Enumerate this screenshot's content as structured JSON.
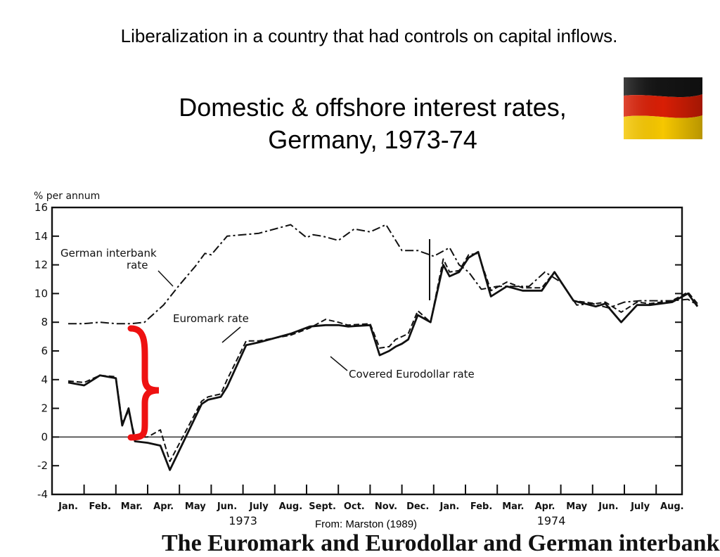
{
  "slide": {
    "subtitle": "Liberalization in a country that had controls on capital inflows.",
    "title_line1": "Domestic & offshore interest rates,",
    "title_line2": "Germany, 1973-74",
    "source": "From: Marston (1989)",
    "cut_text": "The Euromark and Eurodollar and German interbank",
    "flag_icon": "germany-flag-icon",
    "annotation_icon": "red-curly-brace-icon"
  },
  "chart_data": {
    "type": "line",
    "unit_label": "% per annum",
    "ylim": [
      -4,
      16
    ],
    "yticks": [
      -4,
      -2,
      0,
      2,
      4,
      6,
      8,
      10,
      12,
      14,
      16
    ],
    "xlim": [
      0,
      20.3
    ],
    "months": [
      "Jan.",
      "Feb.",
      "Mar.",
      "Apr.",
      "May",
      "Jun.",
      "July",
      "Aug.",
      "Sept.",
      "Oct.",
      "Nov.",
      "Dec.",
      "Jan.",
      "Feb.",
      "Mar.",
      "Apr.",
      "May",
      "Jun.",
      "July",
      "Aug."
    ],
    "years": [
      "1973",
      "1974"
    ],
    "grid": false,
    "annotations": [
      {
        "id": "german",
        "text_lines": [
          "German interbank",
          "rate"
        ]
      },
      {
        "id": "euromark",
        "text_lines": [
          "Euromark rate"
        ]
      },
      {
        "id": "covered",
        "text_lines": [
          "Covered Eurodollar rate"
        ]
      }
    ],
    "series": [
      {
        "name": "German interbank rate",
        "style": "dash-dot",
        "x": [
          0,
          0.5,
          1,
          1.5,
          2,
          2.4,
          3,
          3.5,
          4,
          4.3,
          4.5,
          5,
          5.5,
          6,
          6.5,
          7,
          7.5,
          7.7,
          8,
          8.5,
          9,
          9.5,
          10,
          10.5,
          11,
          11.5,
          12,
          12.3,
          12.6,
          13,
          13.5,
          14,
          14.5,
          15,
          15.5,
          16,
          16.5,
          17,
          17.5,
          18,
          18.5,
          19,
          19.5,
          19.8
        ],
        "y": [
          7.9,
          7.9,
          8.0,
          7.9,
          7.9,
          8.0,
          9.2,
          10.6,
          11.9,
          12.8,
          12.7,
          14.0,
          14.1,
          14.2,
          14.5,
          14.8,
          13.9,
          14.1,
          14.0,
          13.7,
          14.5,
          14.3,
          14.8,
          13.0,
          13.0,
          12.6,
          13.2,
          12.0,
          11.5,
          10.3,
          10.5,
          10.5,
          10.5,
          11.5,
          10.8,
          9.2,
          9.3,
          9.0,
          9.4,
          9.5,
          9.5,
          9.5,
          9.6,
          9.2
        ]
      },
      {
        "name": "Euromark rate",
        "style": "dashed",
        "x": [
          0,
          0.5,
          1,
          1.5,
          1.7,
          1.9,
          2.1,
          2.5,
          2.9,
          3.2,
          4.2,
          4.4,
          4.8,
          5,
          5.6,
          6,
          7,
          7.6,
          8.1,
          8.5,
          8.8,
          9.5,
          9.8,
          10.1,
          10.3,
          10.5,
          10.7,
          11,
          11.4,
          11.8,
          12,
          12.3,
          12.6,
          12.9,
          13.3,
          13.8,
          14.3,
          14.9,
          15.3,
          15.9,
          16.6,
          16.9,
          17.4,
          17.9,
          18.3,
          19,
          19.5,
          19.8
        ],
        "y": [
          3.9,
          3.8,
          4.3,
          4.2,
          1.0,
          1.8,
          0.0,
          0.0,
          0.5,
          -1.7,
          2.5,
          2.8,
          3.0,
          4.0,
          6.7,
          6.7,
          7.1,
          7.6,
          8.2,
          8.0,
          7.8,
          7.9,
          6.2,
          6.3,
          6.8,
          7.0,
          7.2,
          8.8,
          8.0,
          12.4,
          11.5,
          11.6,
          12.7,
          12.8,
          10.2,
          10.8,
          10.4,
          10.4,
          11.5,
          9.5,
          9.3,
          9.4,
          8.7,
          9.4,
          9.3,
          9.5,
          10.1,
          9.3
        ]
      },
      {
        "name": "Covered Eurodollar rate",
        "style": "solid",
        "x": [
          0,
          0.5,
          1,
          1.5,
          1.7,
          1.9,
          2.1,
          2.5,
          2.9,
          3.2,
          4.2,
          4.4,
          4.8,
          5,
          5.6,
          6,
          7,
          7.6,
          8.1,
          8.5,
          8.8,
          9.5,
          9.8,
          10.1,
          10.3,
          10.5,
          10.7,
          11,
          11.4,
          11.8,
          12,
          12.3,
          12.6,
          12.9,
          13.3,
          13.8,
          14.3,
          14.9,
          15.3,
          15.9,
          16.6,
          16.9,
          17.4,
          17.9,
          18.3,
          19,
          19.5,
          19.8
        ],
        "y": [
          3.8,
          3.6,
          4.3,
          4.1,
          0.8,
          2.0,
          -0.3,
          -0.4,
          -0.6,
          -2.3,
          2.3,
          2.6,
          2.8,
          3.5,
          6.4,
          6.6,
          7.2,
          7.7,
          7.8,
          7.8,
          7.7,
          7.8,
          5.7,
          6.0,
          6.3,
          6.5,
          6.8,
          8.5,
          8.0,
          12.0,
          11.2,
          11.5,
          12.5,
          12.9,
          9.8,
          10.5,
          10.2,
          10.2,
          11.5,
          9.5,
          9.1,
          9.3,
          8.0,
          9.2,
          9.2,
          9.4,
          10.0,
          9.1
        ]
      }
    ]
  }
}
